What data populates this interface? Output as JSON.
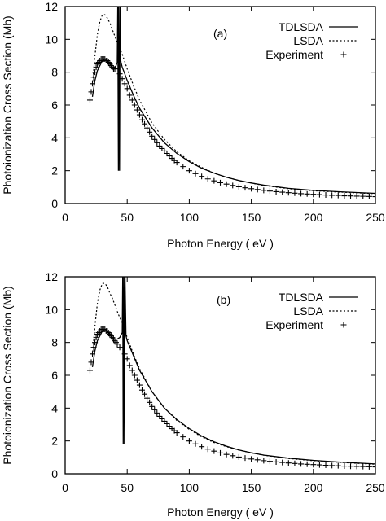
{
  "chart_data": [
    {
      "type": "line",
      "panel_label": "(a)",
      "xlabel": "Photon Energy ( eV )",
      "ylabel": "Photoionization Cross Section (Mb)",
      "xlim": [
        0,
        250
      ],
      "ylim": [
        0,
        12
      ],
      "xticks": [
        0,
        50,
        100,
        150,
        200,
        250
      ],
      "yticks": [
        0,
        2,
        4,
        6,
        8,
        10,
        12
      ],
      "legend_position": "top-right",
      "series": [
        {
          "name": "TDLSDA",
          "style": "solid",
          "x": [
            22,
            24,
            26,
            28,
            30,
            32,
            34,
            36,
            38,
            40,
            42,
            42.4,
            42.9,
            43.2,
            43.8,
            44.2,
            44.7,
            45,
            46,
            48,
            50,
            55,
            60,
            70,
            80,
            90,
            100,
            110,
            120,
            130,
            140,
            150,
            160,
            180,
            200,
            220,
            250
          ],
          "y": [
            6.5,
            7.5,
            8.1,
            8.4,
            8.7,
            8.8,
            8.7,
            8.5,
            8.3,
            8.2,
            8.6,
            12,
            2.0,
            12,
            2.0,
            12,
            8.8,
            8.6,
            8.3,
            7.9,
            7.5,
            6.6,
            5.8,
            4.6,
            3.7,
            3.05,
            2.55,
            2.15,
            1.85,
            1.6,
            1.4,
            1.25,
            1.12,
            0.92,
            0.8,
            0.72,
            0.62
          ]
        },
        {
          "name": "LSDA",
          "style": "dotted",
          "x": [
            22,
            24,
            26,
            28,
            30,
            32,
            34,
            36,
            38,
            40,
            43,
            46,
            50,
            55,
            60,
            70,
            80,
            90,
            100,
            110,
            120,
            130,
            140,
            150,
            160,
            180,
            200,
            220,
            250
          ],
          "y": [
            7.2,
            9.0,
            10.3,
            11.1,
            11.5,
            11.5,
            11.3,
            11.0,
            10.6,
            10.2,
            9.6,
            9.1,
            8.2,
            7.2,
            6.3,
            4.9,
            3.9,
            3.15,
            2.6,
            2.2,
            1.85,
            1.6,
            1.4,
            1.25,
            1.1,
            0.9,
            0.78,
            0.7,
            0.6
          ]
        },
        {
          "name": "Experiment",
          "style": "plus",
          "x": [
            20,
            21,
            22,
            23,
            24,
            25,
            26,
            27,
            28,
            29,
            30,
            31,
            32,
            33,
            34,
            35,
            36,
            37,
            38,
            39,
            40,
            41,
            44,
            46,
            48,
            50,
            52,
            54,
            56,
            58,
            60,
            62,
            64,
            66,
            68,
            70,
            72,
            74,
            76,
            78,
            80,
            82,
            84,
            86,
            88,
            90,
            95,
            100,
            105,
            110,
            115,
            120,
            125,
            130,
            135,
            140,
            145,
            150,
            155,
            160,
            165,
            170,
            175,
            180,
            185,
            190,
            195,
            200,
            205,
            210,
            215,
            220,
            225,
            230,
            235,
            240,
            245,
            250
          ],
          "y": [
            6.3,
            6.8,
            7.3,
            7.7,
            8.0,
            8.3,
            8.5,
            8.6,
            8.7,
            8.8,
            8.8,
            8.8,
            8.8,
            8.7,
            8.7,
            8.6,
            8.5,
            8.4,
            8.3,
            8.2,
            8.2,
            8.2,
            7.9,
            7.6,
            7.3,
            7.0,
            6.6,
            6.3,
            6.0,
            5.7,
            5.4,
            5.1,
            4.85,
            4.6,
            4.35,
            4.1,
            3.9,
            3.7,
            3.5,
            3.35,
            3.2,
            3.05,
            2.9,
            2.75,
            2.62,
            2.5,
            2.25,
            2.0,
            1.82,
            1.65,
            1.5,
            1.38,
            1.27,
            1.18,
            1.1,
            1.02,
            0.96,
            0.9,
            0.85,
            0.8,
            0.76,
            0.72,
            0.69,
            0.66,
            0.63,
            0.6,
            0.58,
            0.56,
            0.54,
            0.52,
            0.5,
            0.49,
            0.47,
            0.46,
            0.45,
            0.44,
            0.43,
            0.42
          ]
        }
      ]
    },
    {
      "type": "line",
      "panel_label": "(b)",
      "xlabel": "Photon Energy ( eV )",
      "ylabel": "Photoionization Cross Section (Mb)",
      "xlim": [
        0,
        250
      ],
      "ylim": [
        0,
        12
      ],
      "xticks": [
        0,
        50,
        100,
        150,
        200,
        250
      ],
      "yticks": [
        0,
        2,
        4,
        6,
        8,
        10,
        12
      ],
      "legend_position": "top-right",
      "series": [
        {
          "name": "TDLSDA",
          "style": "solid",
          "x": [
            22,
            24,
            26,
            28,
            30,
            32,
            34,
            36,
            38,
            40,
            42,
            44,
            46,
            46.4,
            46.8,
            47.3,
            47.8,
            48.2,
            49,
            50,
            55,
            60,
            70,
            80,
            90,
            100,
            110,
            120,
            130,
            140,
            150,
            160,
            180,
            200,
            220,
            250
          ],
          "y": [
            6.5,
            7.5,
            8.1,
            8.4,
            8.7,
            8.8,
            8.7,
            8.5,
            8.3,
            8.2,
            8.2,
            8.3,
            8.6,
            12,
            1.8,
            12,
            1.8,
            12,
            8.4,
            8.1,
            7.2,
            6.3,
            5.0,
            4.0,
            3.3,
            2.75,
            2.3,
            1.95,
            1.68,
            1.45,
            1.28,
            1.14,
            0.95,
            0.82,
            0.72,
            0.6
          ]
        },
        {
          "name": "LSDA",
          "style": "dotted",
          "x": [
            22,
            24,
            26,
            28,
            30,
            32,
            34,
            36,
            38,
            40,
            43,
            46,
            50,
            55,
            60,
            70,
            80,
            90,
            100,
            110,
            120,
            130,
            140,
            150,
            160,
            180,
            200,
            220,
            250
          ],
          "y": [
            7.2,
            9.0,
            10.4,
            11.2,
            11.6,
            11.6,
            11.4,
            11.0,
            10.7,
            10.3,
            9.7,
            9.2,
            8.3,
            7.3,
            6.4,
            5.0,
            4.0,
            3.25,
            2.7,
            2.25,
            1.9,
            1.65,
            1.45,
            1.28,
            1.13,
            0.93,
            0.8,
            0.7,
            0.58
          ]
        },
        {
          "name": "Experiment",
          "style": "plus",
          "x": [
            20,
            21,
            22,
            23,
            24,
            25,
            26,
            27,
            28,
            29,
            30,
            31,
            32,
            33,
            34,
            35,
            36,
            37,
            38,
            39,
            40,
            41,
            42,
            44,
            48,
            50,
            52,
            54,
            56,
            58,
            60,
            62,
            64,
            66,
            68,
            70,
            72,
            74,
            76,
            78,
            80,
            82,
            84,
            86,
            88,
            90,
            95,
            100,
            105,
            110,
            115,
            120,
            125,
            130,
            135,
            140,
            145,
            150,
            155,
            160,
            165,
            170,
            175,
            180,
            185,
            190,
            195,
            200,
            205,
            210,
            215,
            220,
            225,
            230,
            235,
            240,
            245,
            250
          ],
          "y": [
            6.3,
            6.8,
            7.3,
            7.7,
            8.0,
            8.3,
            8.5,
            8.6,
            8.7,
            8.8,
            8.8,
            8.8,
            8.8,
            8.7,
            8.7,
            8.6,
            8.5,
            8.4,
            8.3,
            8.2,
            8.1,
            8.0,
            7.9,
            7.7,
            7.3,
            7.0,
            6.6,
            6.3,
            6.0,
            5.7,
            5.4,
            5.1,
            4.85,
            4.6,
            4.35,
            4.1,
            3.9,
            3.7,
            3.5,
            3.35,
            3.2,
            3.05,
            2.9,
            2.75,
            2.62,
            2.5,
            2.25,
            2.0,
            1.82,
            1.65,
            1.5,
            1.38,
            1.27,
            1.18,
            1.1,
            1.02,
            0.96,
            0.9,
            0.85,
            0.8,
            0.76,
            0.72,
            0.69,
            0.66,
            0.63,
            0.6,
            0.58,
            0.56,
            0.54,
            0.52,
            0.5,
            0.49,
            0.47,
            0.46,
            0.45,
            0.44,
            0.43,
            0.42
          ]
        }
      ]
    }
  ]
}
